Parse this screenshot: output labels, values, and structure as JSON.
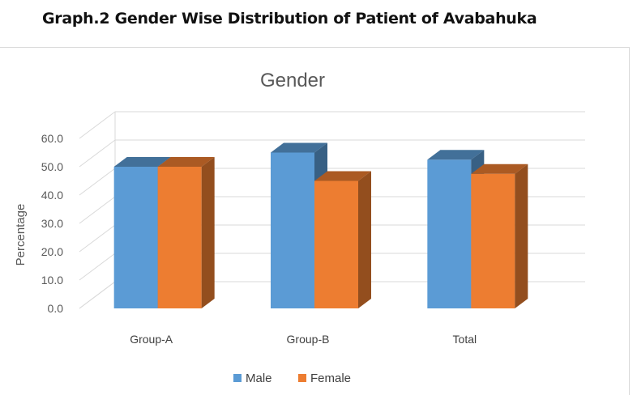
{
  "page": {
    "heading": "Graph.2 Gender Wise Distribution of Patient of Avabahuka"
  },
  "chart_data": {
    "type": "bar",
    "title": "Gender",
    "xlabel": "",
    "ylabel": "Percentage",
    "categories": [
      "Group-A",
      "Group-B",
      "Total"
    ],
    "series": [
      {
        "name": "Male",
        "values": [
          50.0,
          55.0,
          52.5
        ],
        "color": "#5B9BD5"
      },
      {
        "name": "Female",
        "values": [
          50.0,
          45.0,
          47.5
        ],
        "color": "#ED7D31"
      }
    ],
    "ylim": [
      0,
      60
    ],
    "yticks": [
      "0.0",
      "10.0",
      "20.0",
      "30.0",
      "40.0",
      "50.0",
      "60.0"
    ],
    "grid": true,
    "legend": "bottom",
    "style": "3d-clustered-column"
  }
}
